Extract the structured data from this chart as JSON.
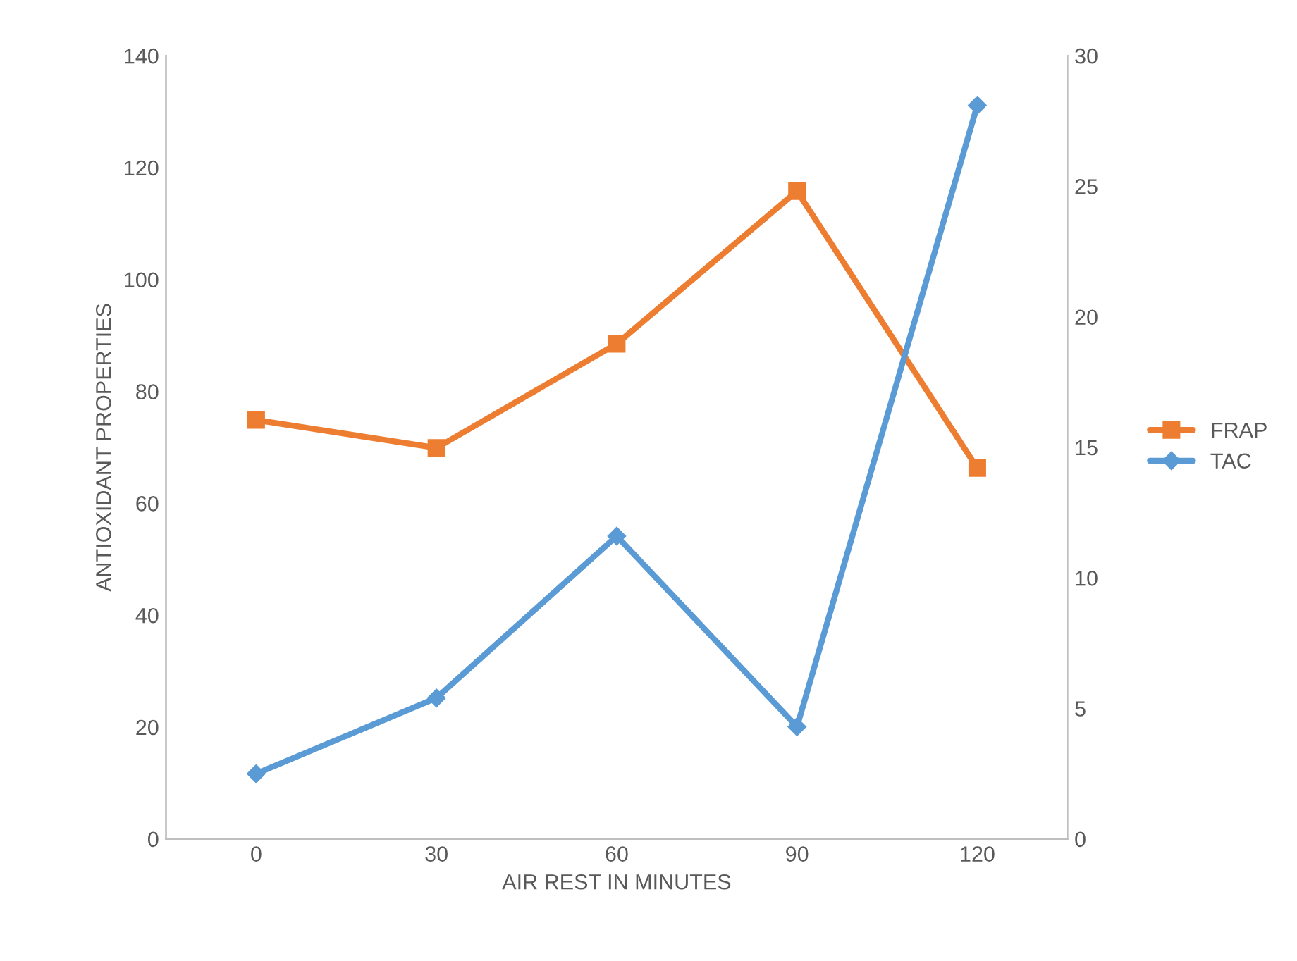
{
  "chart_data": {
    "type": "line",
    "xlabel": "AIR REST IN MINUTES",
    "ylabel": "ANTIOXIDANT PROPERTIES",
    "categories": [
      "0",
      "30",
      "60",
      "90",
      "120"
    ],
    "series": [
      {
        "name": "FRAP",
        "color": "#ed7d31",
        "marker": "square",
        "values": [
          74.9,
          69.9,
          88.5,
          115.8,
          66.3
        ]
      },
      {
        "name": "TAC",
        "color": "#5b9bd5",
        "marker": "diamond",
        "axis": "y2",
        "values": [
          2.5,
          5.4,
          11.6,
          4.3,
          28.1
        ]
      }
    ],
    "ylim": [
      0,
      140
    ],
    "yticks": [
      0,
      20,
      40,
      60,
      80,
      100,
      120,
      140
    ],
    "y2lim": [
      0,
      30
    ],
    "y2ticks": [
      0,
      5,
      10,
      15,
      20,
      25,
      30
    ],
    "grid": false,
    "legend": "right",
    "line_style": "solid"
  }
}
